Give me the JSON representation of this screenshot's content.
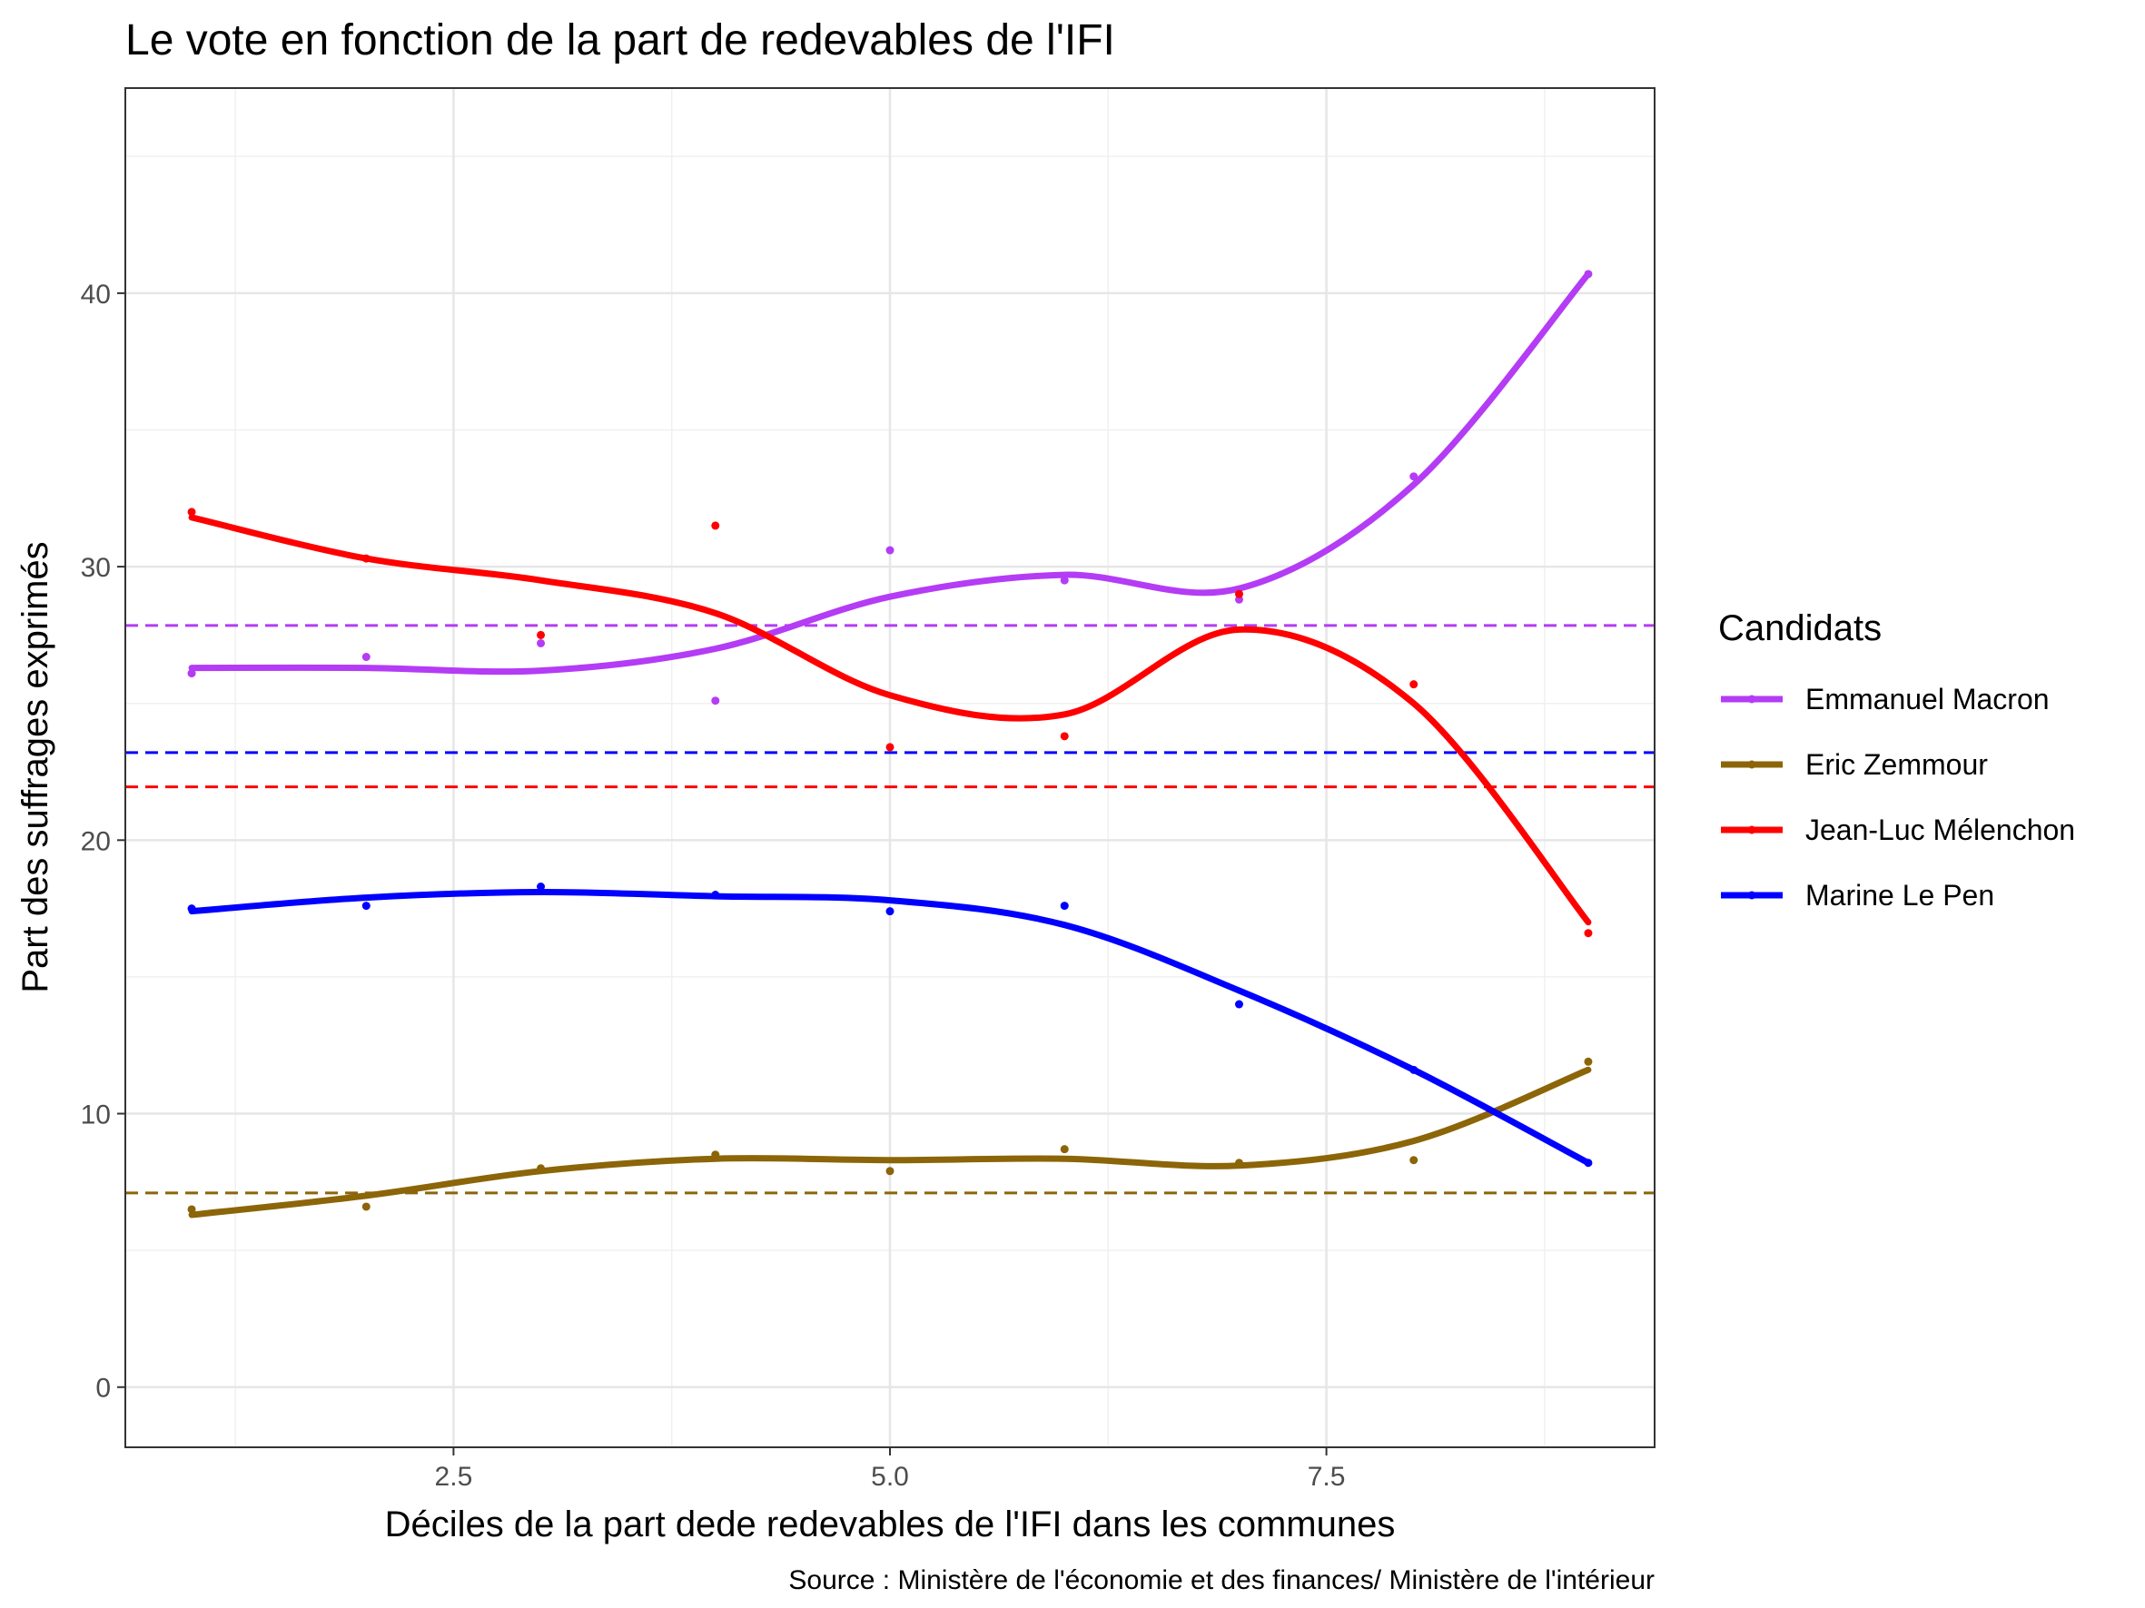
{
  "chart_data": {
    "type": "scatter",
    "title": "Le vote en fonction de la part de redevables de l'IFI",
    "xlabel": "Déciles de la part dede redevables de l'IFI dans les communes",
    "ylabel": "Part des suffrages exprimés",
    "caption": "Source : Ministère de l'économie et des finances/ Ministère de l'intérieur",
    "xlim": [
      0.62,
      9.38
    ],
    "ylim": [
      -2.2,
      47.5
    ],
    "x_ticks": [
      2.5,
      5.0,
      7.5
    ],
    "x_tick_labels": [
      "2.5",
      "5.0",
      "7.5"
    ],
    "y_ticks": [
      0,
      10,
      20,
      30,
      40
    ],
    "y_tick_labels": [
      "0",
      "10",
      "20",
      "30",
      "40"
    ],
    "grid": true,
    "legend": {
      "title": "Candidats",
      "position": "right"
    },
    "series": [
      {
        "name": "Emmanuel Macron",
        "color": "#B43CF5",
        "x": [
          1,
          2,
          3,
          4,
          5,
          6,
          7,
          8,
          9
        ],
        "points": [
          26.1,
          26.7,
          27.2,
          25.1,
          30.6,
          29.5,
          28.8,
          33.3,
          40.7
        ],
        "smooth": [
          26.3,
          26.3,
          26.2,
          27.0,
          28.9,
          29.7,
          29.2,
          33.0,
          40.7
        ],
        "mean": 27.85
      },
      {
        "name": "Eric Zemmour",
        "color": "#8B6508",
        "x": [
          1,
          2,
          3,
          4,
          5,
          6,
          7,
          8,
          9
        ],
        "points": [
          6.5,
          6.6,
          8.0,
          8.5,
          7.9,
          8.7,
          8.2,
          8.3,
          11.9
        ],
        "smooth": [
          6.3,
          7.0,
          7.9,
          8.35,
          8.3,
          8.35,
          8.1,
          9.0,
          11.6
        ],
        "mean": 7.1
      },
      {
        "name": "Jean-Luc Mélenchon",
        "color": "#FF0000",
        "x": [
          1,
          2,
          3,
          4,
          5,
          6,
          7,
          8,
          9
        ],
        "points": [
          32.0,
          30.3,
          27.5,
          31.5,
          23.4,
          23.8,
          29.0,
          25.7,
          16.6
        ],
        "smooth": [
          31.8,
          30.3,
          29.5,
          28.3,
          25.3,
          24.6,
          27.7,
          25.0,
          17.0
        ],
        "mean": 21.95
      },
      {
        "name": "Marine Le Pen",
        "color": "#0000FF",
        "x": [
          1,
          2,
          3,
          4,
          5,
          6,
          7,
          8,
          9
        ],
        "points": [
          17.5,
          17.6,
          18.3,
          18.0,
          17.4,
          17.6,
          14.0,
          11.6,
          8.2
        ],
        "smooth": [
          17.4,
          17.9,
          18.1,
          17.95,
          17.8,
          16.9,
          14.5,
          11.6,
          8.2
        ],
        "mean": 23.2
      }
    ]
  }
}
